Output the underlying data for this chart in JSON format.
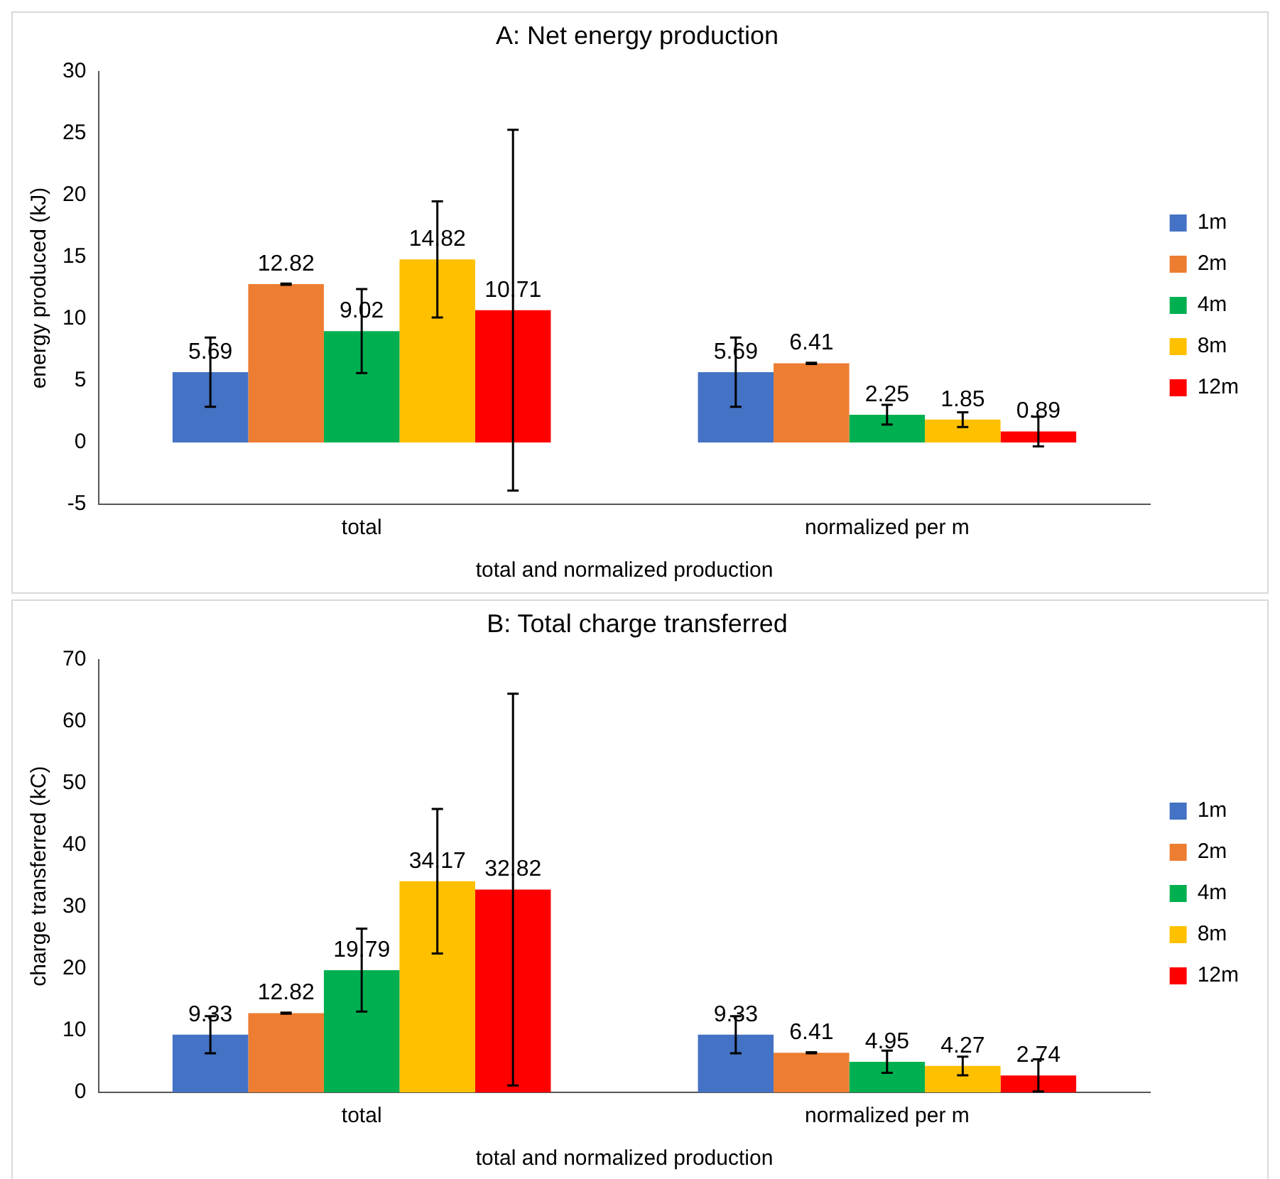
{
  "chart_data": [
    {
      "type": "bar",
      "title": "A: Net energy production",
      "xlabel": "total and normalized production",
      "ylabel": "energy produced (kJ)",
      "categories": [
        "total",
        "normalized per m"
      ],
      "series": [
        {
          "name": "1m",
          "color": "#4472c4",
          "values": [
            5.69,
            5.69
          ],
          "errors": [
            2.8,
            2.8
          ]
        },
        {
          "name": "2m",
          "color": "#ed7d31",
          "values": [
            12.82,
            6.41
          ],
          "errors": [
            0.05,
            0.05
          ]
        },
        {
          "name": "4m",
          "color": "#00b050",
          "values": [
            9.02,
            2.25
          ],
          "errors": [
            3.4,
            0.8
          ]
        },
        {
          "name": "8m",
          "color": "#ffc000",
          "values": [
            14.82,
            1.85
          ],
          "errors": [
            4.7,
            0.6
          ]
        },
        {
          "name": "12m",
          "color": "#ff0000",
          "values": [
            10.71,
            0.89
          ],
          "errors": [
            14.6,
            1.2
          ]
        }
      ],
      "ylim": [
        -5,
        30
      ],
      "yticks": [
        -5,
        0,
        5,
        10,
        15,
        20,
        25,
        30
      ],
      "grid": false,
      "legend": "right",
      "data_labels": true
    },
    {
      "type": "bar",
      "title": "B: Total charge transferred",
      "xlabel": "total and normalized production",
      "ylabel": "charge transferred (kC)",
      "categories": [
        "total",
        "normalized per m"
      ],
      "series": [
        {
          "name": "1m",
          "color": "#4472c4",
          "values": [
            9.33,
            9.33
          ],
          "errors": [
            3,
            3
          ]
        },
        {
          "name": "2m",
          "color": "#ed7d31",
          "values": [
            12.82,
            6.41
          ],
          "errors": [
            0.1,
            0.1
          ]
        },
        {
          "name": "4m",
          "color": "#00b050",
          "values": [
            19.79,
            4.95
          ],
          "errors": [
            6.7,
            1.8
          ]
        },
        {
          "name": "8m",
          "color": "#ffc000",
          "values": [
            34.17,
            4.27
          ],
          "errors": [
            11.7,
            1.5
          ]
        },
        {
          "name": "12m",
          "color": "#ff0000",
          "values": [
            32.82,
            2.74
          ],
          "errors": [
            31.7,
            2.6
          ]
        }
      ],
      "ylim": [
        0,
        70
      ],
      "yticks": [
        0,
        10,
        20,
        30,
        40,
        50,
        60,
        70
      ],
      "grid": false,
      "legend": "right",
      "data_labels": true
    }
  ]
}
